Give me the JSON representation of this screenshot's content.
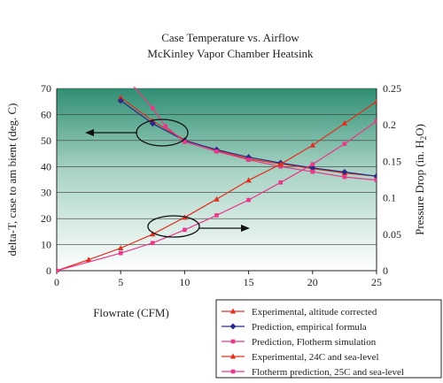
{
  "chart_data": {
    "type": "line",
    "title": "Case Temperature vs. Airflow",
    "subtitle": "McKinley Vapor Chamber Heatsink",
    "xlabel": "Flowrate (CFM)",
    "ylabel_left": "delta-T, case to am bient (deg. C)",
    "ylabel_right": "Pressure Drop (in. H2O)",
    "xlim": [
      0,
      25
    ],
    "ylim_left": [
      0,
      70
    ],
    "ylim_right": [
      0,
      0.25
    ],
    "x_ticks": [
      "0",
      "5",
      "10",
      "15",
      "20",
      "25"
    ],
    "y_left_ticks": [
      "0",
      "10",
      "20",
      "30",
      "40",
      "50",
      "60",
      "70"
    ],
    "y_right_ticks": [
      "0",
      "0.05",
      "0.1",
      "0.15",
      "0.2",
      "0.25"
    ],
    "grid": true,
    "legend_position": "bottom-right",
    "series": [
      {
        "name": "Experimental, altitude corrected",
        "axis": "left",
        "color": "#e0301e",
        "marker": "triangle",
        "x": [
          5,
          7.5,
          10,
          12.5,
          15,
          17.5,
          20,
          22.5,
          25
        ],
        "y": [
          66.5,
          57.5,
          50.2,
          46.2,
          43.0,
          41.0,
          39.2,
          37.5,
          36.3
        ]
      },
      {
        "name": "Prediction, empirical formula",
        "axis": "left",
        "color": "#2a2a8a",
        "marker": "diamond",
        "x": [
          5,
          7.5,
          10,
          12.5,
          15,
          17.5,
          20,
          22.5,
          25
        ],
        "y": [
          65.3,
          56.5,
          50.0,
          46.5,
          43.6,
          41.4,
          39.5,
          37.9,
          36.3
        ]
      },
      {
        "name": "Prediction, Flotherm simulation",
        "axis": "left",
        "color": "#e8388a",
        "marker": "square",
        "x": [
          5.8,
          7.5,
          8.5,
          10,
          12.5,
          15,
          17.5,
          20,
          22.5,
          25
        ],
        "y": [
          72,
          62.5,
          55.5,
          49.5,
          45.8,
          42.6,
          40.0,
          38.0,
          36.0,
          34.8
        ]
      },
      {
        "name": "Experimental, 24C and sea-level",
        "axis": "right",
        "color": "#e0301e",
        "marker": "triangle",
        "x": [
          0,
          2.5,
          5,
          7.5,
          10,
          12.5,
          15,
          17.5,
          20,
          22.5,
          25
        ],
        "y": [
          0,
          0.015,
          0.031,
          0.05,
          0.073,
          0.098,
          0.124,
          0.146,
          0.172,
          0.202,
          0.232
        ]
      },
      {
        "name": "Flotherm prediction, 25C and sea-level",
        "axis": "right",
        "color": "#e8388a",
        "marker": "square",
        "x": [
          0,
          5,
          7.5,
          10,
          12.5,
          15,
          17.5,
          20,
          22.5,
          25
        ],
        "y": [
          0,
          0.024,
          0.038,
          0.056,
          0.076,
          0.097,
          0.121,
          0.146,
          0.174,
          0.205
        ]
      }
    ],
    "annotations": [
      {
        "type": "ellipse-arrow",
        "points_to": "left axis",
        "at": [
          10,
          55
        ]
      },
      {
        "type": "ellipse-arrow",
        "points_to": "right axis",
        "at": [
          9.2,
          18
        ]
      }
    ]
  }
}
